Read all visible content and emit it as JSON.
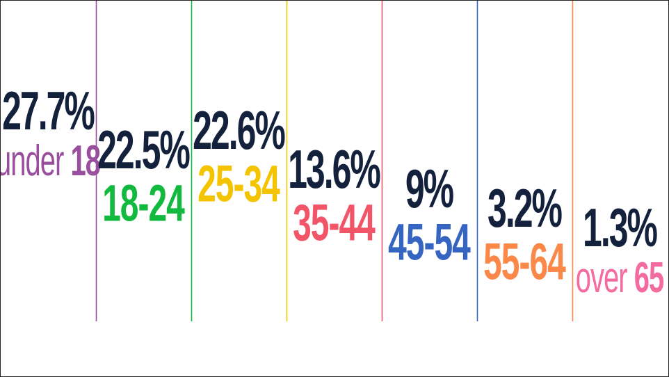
{
  "chart_data": {
    "type": "table",
    "unit": "%",
    "colors": {
      "value_text": "#14213d",
      "palette": [
        "#9a4e9e",
        "#11b93f",
        "#f5c400",
        "#f25568",
        "#3565c1",
        "#fa8848",
        "#f46c9f"
      ]
    },
    "categories": [
      {
        "word": "under",
        "number": "18",
        "label": "under 18",
        "value": 27.7,
        "value_text": "27.7%",
        "color": "#9a4e9e"
      },
      {
        "word": "",
        "number": "18-24",
        "label": "18-24",
        "value": 22.5,
        "value_text": "22.5%",
        "color": "#11b93f"
      },
      {
        "word": "",
        "number": "25-34",
        "label": "25-34",
        "value": 22.6,
        "value_text": "22.6%",
        "color": "#f5c400"
      },
      {
        "word": "",
        "number": "35-44",
        "label": "35-44",
        "value": 13.6,
        "value_text": "13.6%",
        "color": "#f25568"
      },
      {
        "word": "",
        "number": "45-54",
        "label": "45-54",
        "value": 9,
        "value_text": "9%",
        "color": "#3565c1"
      },
      {
        "word": "",
        "number": "55-64",
        "label": "55-64",
        "value": 3.2,
        "value_text": "3.2%",
        "color": "#fa8848"
      },
      {
        "word": "over",
        "number": "65",
        "label": "over 65",
        "value": 1.3,
        "value_text": "1.3%",
        "color": "#f46c9f"
      }
    ]
  }
}
